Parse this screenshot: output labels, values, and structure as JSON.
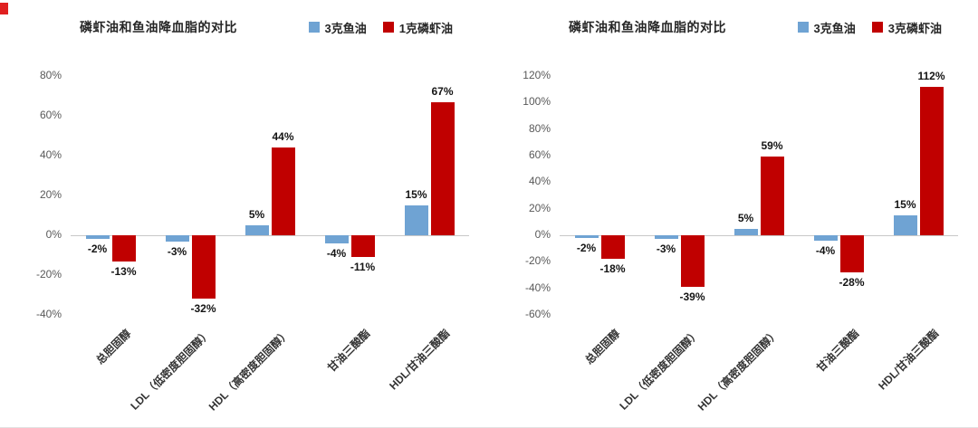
{
  "colors": {
    "fish_oil_blue": "#6fa3d3",
    "krill_oil_red": "#c00000"
  },
  "chart_data": [
    {
      "type": "bar",
      "title": "磷虾油和鱼油降血脂的对比",
      "categories": [
        "总胆固醇",
        "LDL（低密度胆固醇）",
        "HDL（高密度胆固醇）",
        "甘油三酸酯",
        "HDL/甘油三酸酯"
      ],
      "series": [
        {
          "name": "3克鱼油",
          "color": "#6fa3d3",
          "values": [
            -2,
            -3,
            5,
            -4,
            15
          ]
        },
        {
          "name": "1克磷虾油",
          "color": "#c00000",
          "values": [
            -13,
            -32,
            44,
            -11,
            67
          ]
        }
      ],
      "ylim": [
        -40,
        80
      ],
      "ytick_step": 20,
      "tick_suffix": "%",
      "grid": false,
      "legend_position": "top-right",
      "data_labels": true
    },
    {
      "type": "bar",
      "title": "磷虾油和鱼油降血脂的对比",
      "categories": [
        "总胆固醇",
        "LDL（低密度胆固醇）",
        "HDL（高密度胆固醇）",
        "甘油三酸酯",
        "HDL/甘油三酸酯"
      ],
      "series": [
        {
          "name": "3克鱼油",
          "color": "#6fa3d3",
          "values": [
            -2,
            -3,
            5,
            -4,
            15
          ]
        },
        {
          "name": "3克磷虾油",
          "color": "#c00000",
          "values": [
            -18,
            -39,
            59,
            -28,
            112
          ]
        }
      ],
      "ylim": [
        -60,
        120
      ],
      "ytick_step": 20,
      "tick_suffix": "%",
      "grid": false,
      "legend_position": "top-right",
      "data_labels": true
    }
  ]
}
